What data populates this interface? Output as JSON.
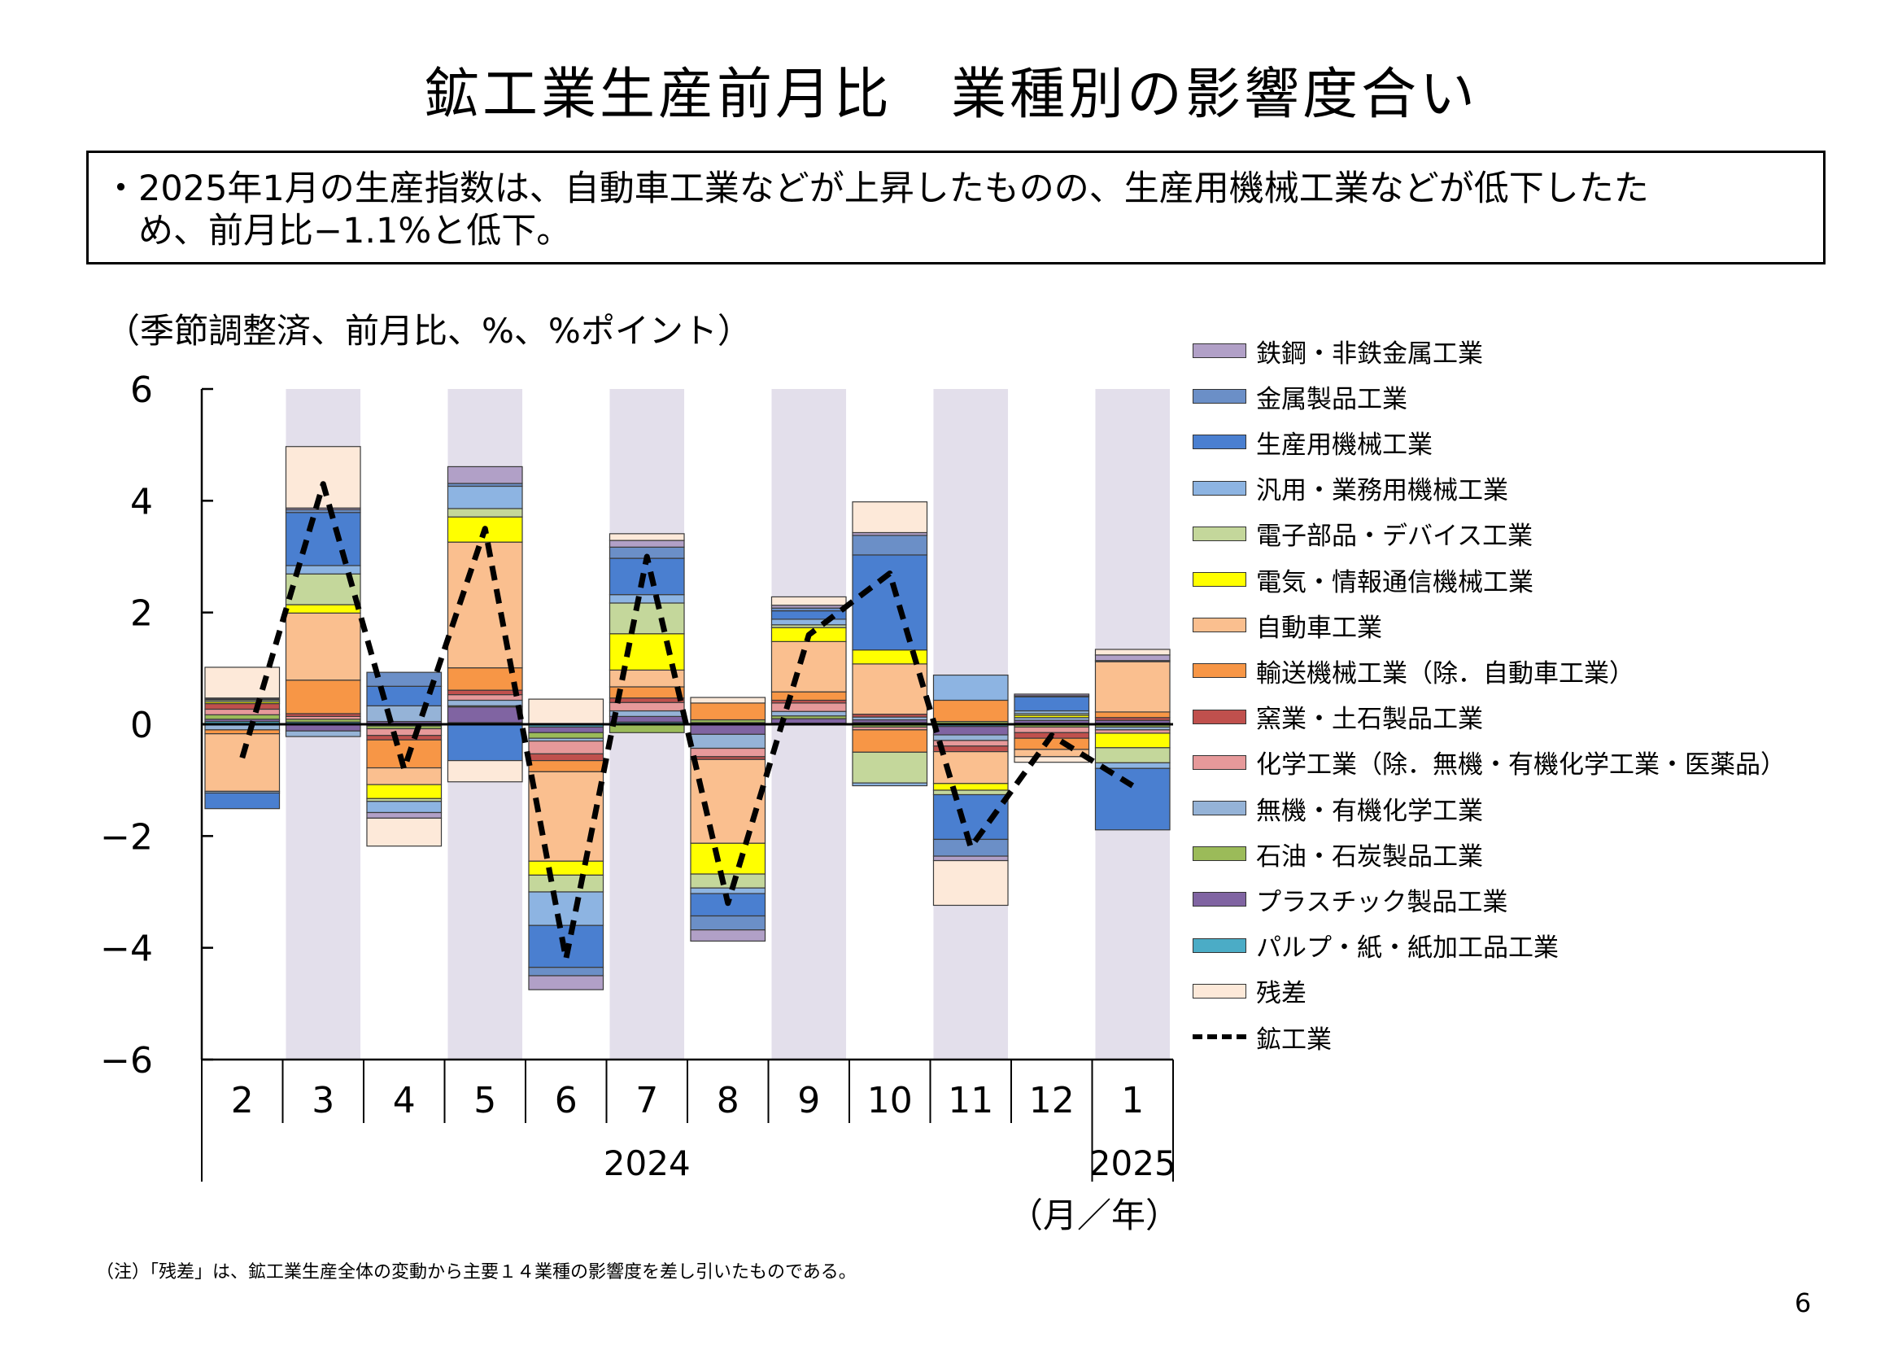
{
  "title": "鉱工業生産前月比　業種別の影響度合い",
  "summary": {
    "line1": "・2025年1月の生産指数は、自動車工業などが上昇したものの、生産用機械工業などが低下したた",
    "line2": "　め、前月比−1.1%と低下。"
  },
  "unit_note": "（季節調整済、前月比、%、%ポイント）",
  "footnote": "（注）「残差」は、鉱工業生産全体の変動から主要１４業種の影響度を差し引いたものである。",
  "page_number": "6",
  "chart_data": {
    "type": "bar",
    "stacked": true,
    "categories": [
      "2",
      "3",
      "4",
      "5",
      "6",
      "7",
      "8",
      "9",
      "10",
      "11",
      "12",
      "1"
    ],
    "year_labels": [
      {
        "label": "2024",
        "from": 0,
        "to": 10
      },
      {
        "label": "2025",
        "from": 11,
        "to": 11
      }
    ],
    "x_unit_label": "（月／年）",
    "ylim": [
      -6,
      6
    ],
    "yticks": [
      6,
      4,
      2,
      0,
      -2,
      -4,
      -6
    ],
    "ytick_labels": [
      "6",
      "4",
      "2",
      "0",
      "−2",
      "−4",
      "−6"
    ],
    "shaded_categories": [
      1,
      3,
      5,
      7,
      9,
      11
    ],
    "shade_color": "#e3dfeb",
    "legend_position": "right",
    "series": [
      {
        "name": "パルプ・紙・紙加工品工業",
        "color": "#4bacc6",
        "values": [
          0.05,
          0.04,
          -0.03,
          0.03,
          -0.05,
          0.04,
          0.03,
          0.02,
          0.03,
          -0.04,
          0.02,
          0.02
        ]
      },
      {
        "name": "プラスチック製品工業",
        "color": "#8064a2",
        "values": [
          0.04,
          -0.12,
          0.05,
          0.28,
          -0.1,
          0.1,
          -0.18,
          0.08,
          0.05,
          -0.15,
          0.05,
          0.05
        ]
      },
      {
        "name": "石油・石炭製品工業",
        "color": "#9bbb59",
        "values": [
          0.08,
          0.05,
          -0.05,
          0.02,
          -0.1,
          -0.15,
          0.05,
          0.05,
          -0.05,
          0.05,
          -0.05,
          -0.05
        ]
      },
      {
        "name": "無機・有機化学工業",
        "color": "#95b3d7",
        "values": [
          -0.1,
          -0.1,
          0.28,
          0.1,
          -0.05,
          0.1,
          -0.25,
          0.08,
          0.05,
          -0.1,
          0.05,
          -0.05
        ]
      },
      {
        "name": "化学工業（除．無機・有機化学工業・医薬品）",
        "color": "#e6999a",
        "values": [
          0.1,
          0.05,
          -0.12,
          0.1,
          -0.23,
          0.15,
          -0.15,
          0.15,
          -0.05,
          -0.1,
          -0.1,
          -0.06
        ]
      },
      {
        "name": "窯業・土石製品工業",
        "color": "#c0504d",
        "values": [
          0.1,
          0.05,
          -0.08,
          0.08,
          -0.12,
          0.08,
          -0.05,
          0.05,
          0.05,
          -0.1,
          -0.1,
          0.05
        ]
      },
      {
        "name": "輸送機械工業（除．自動車工業）",
        "color": "#f79646",
        "values": [
          -0.07,
          0.6,
          -0.5,
          0.4,
          -0.2,
          0.2,
          0.3,
          0.15,
          -0.4,
          0.38,
          -0.2,
          0.1
        ]
      },
      {
        "name": "自動車工業",
        "color": "#fabf8f",
        "values": [
          -1.03,
          1.2,
          -0.3,
          2.25,
          -1.6,
          0.3,
          -1.5,
          0.9,
          0.9,
          -0.57,
          -0.13,
          0.9
        ]
      },
      {
        "name": "電気・情報通信機械工業",
        "color": "#ffff00",
        "values": [
          0.03,
          0.15,
          -0.25,
          0.45,
          -0.25,
          0.65,
          -0.55,
          0.25,
          0.25,
          -0.12,
          0.04,
          -0.26
        ]
      },
      {
        "name": "電子部品・デバイス工業",
        "color": "#c4d79b",
        "values": [
          0.03,
          0.55,
          -0.05,
          0.15,
          -0.3,
          0.55,
          -0.25,
          0.05,
          -0.55,
          -0.08,
          0.03,
          -0.27
        ]
      },
      {
        "name": "汎用・業務用機械工業",
        "color": "#8db4e2",
        "values": [
          -0.03,
          0.15,
          -0.2,
          0.4,
          -0.6,
          0.15,
          -0.1,
          0.1,
          -0.05,
          0.45,
          0.05,
          -0.1
        ]
      },
      {
        "name": "生産用機械工業",
        "color": "#4a7fd0",
        "values": [
          -0.28,
          0.95,
          0.35,
          -0.65,
          -0.75,
          0.65,
          -0.4,
          0.15,
          1.7,
          -0.8,
          0.25,
          -1.1
        ]
      },
      {
        "name": "金属製品工業",
        "color": "#6b8fc7",
        "values": [
          0.02,
          0.05,
          0.25,
          0.05,
          -0.15,
          0.2,
          -0.25,
          0.05,
          0.35,
          -0.3,
          0.02,
          0.02
        ]
      },
      {
        "name": "鉄鋼・非鉄金属工業",
        "color": "#b1a0c7",
        "values": [
          0.02,
          0.03,
          -0.1,
          0.3,
          -0.25,
          0.12,
          -0.2,
          0.05,
          0.05,
          -0.08,
          0.03,
          0.1
        ]
      },
      {
        "name": "残差",
        "color": "#fde9d9",
        "values": [
          0.55,
          1.1,
          -0.5,
          -0.38,
          0.45,
          0.12,
          0.1,
          0.15,
          0.55,
          -0.8,
          -0.1,
          0.1
        ]
      }
    ],
    "line_series": {
      "name": "鉱工業",
      "color": "#000000",
      "values": [
        -0.6,
        4.3,
        -0.8,
        3.5,
        -4.2,
        3.0,
        -3.2,
        1.6,
        2.7,
        -2.2,
        -0.2,
        -1.1
      ]
    }
  },
  "legend_order": [
    "鉄鋼・非鉄金属工業",
    "金属製品工業",
    "生産用機械工業",
    "汎用・業務用機械工業",
    "電子部品・デバイス工業",
    "電気・情報通信機械工業",
    "自動車工業",
    "輸送機械工業（除．自動車工業）",
    "窯業・土石製品工業",
    "化学工業（除．無機・有機化学工業・医薬品）",
    "無機・有機化学工業",
    "石油・石炭製品工業",
    "プラスチック製品工業",
    "パルプ・紙・紙加工品工業",
    "残差",
    "鉱工業"
  ]
}
